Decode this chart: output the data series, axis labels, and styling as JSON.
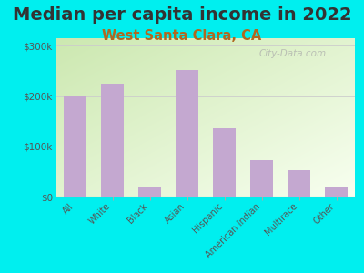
{
  "title": "Median per capita income in 2022",
  "subtitle": "West Santa Clara, CA",
  "categories": [
    "All",
    "White",
    "Black",
    "Asian",
    "Hispanic",
    "American Indian",
    "Multirace",
    "Other"
  ],
  "values": [
    200000,
    225000,
    20000,
    252000,
    135000,
    72000,
    52000,
    20000
  ],
  "bar_color": "#c4a8d0",
  "background_outer": "#00efef",
  "gradient_top_left": "#cce8b0",
  "gradient_bottom_right": "#f8fff0",
  "title_color": "#333333",
  "subtitle_color": "#b06820",
  "tick_label_color": "#555555",
  "yticks": [
    0,
    100000,
    200000,
    300000
  ],
  "ytick_labels": [
    "$0",
    "$100k",
    "$200k",
    "$300k"
  ],
  "ylim": [
    0,
    315000
  ],
  "watermark": "City-Data.com",
  "title_fontsize": 14,
  "subtitle_fontsize": 10.5
}
